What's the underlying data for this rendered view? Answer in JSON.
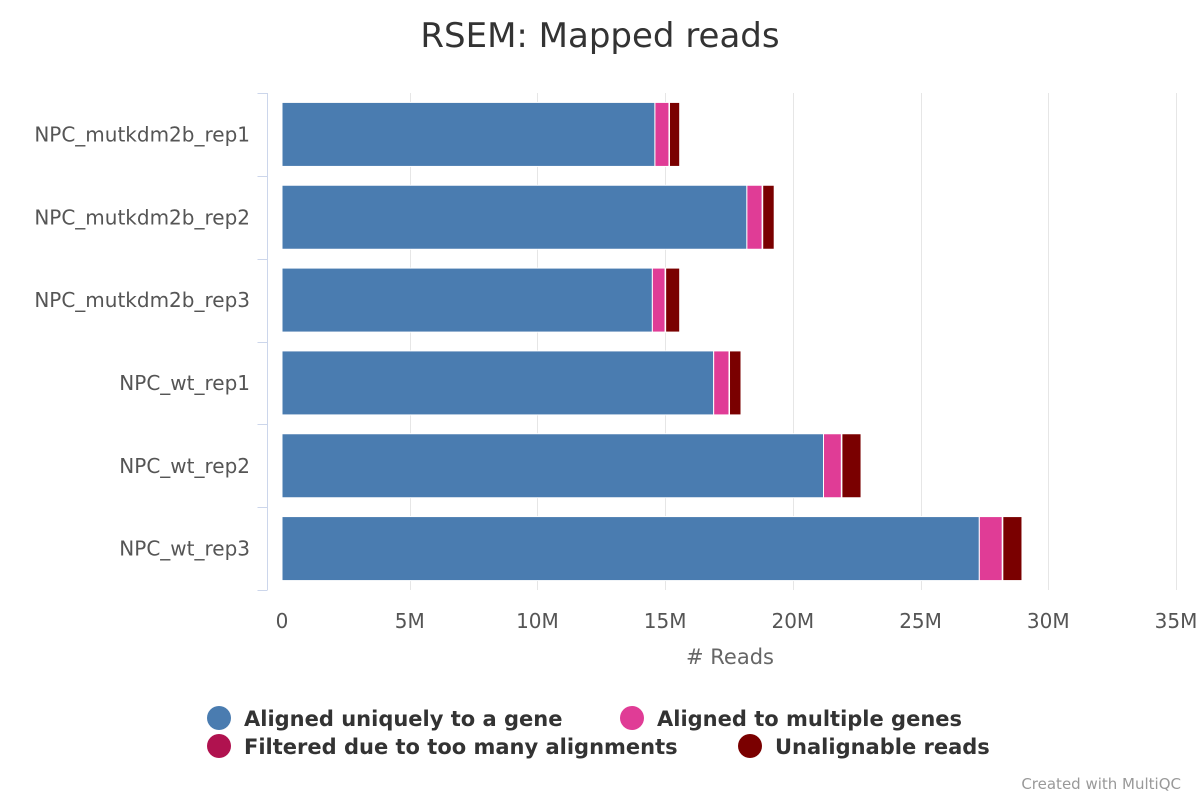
{
  "chart_data": {
    "type": "bar",
    "orientation": "horizontal",
    "stacked": true,
    "title": "RSEM: Mapped reads",
    "xlabel": "# Reads",
    "categories": [
      "NPC_mutkdm2b_rep1",
      "NPC_mutkdm2b_rep2",
      "NPC_mutkdm2b_rep3",
      "NPC_wt_rep1",
      "NPC_wt_rep2",
      "NPC_wt_rep3"
    ],
    "xlim": [
      0,
      35000000
    ],
    "x_ticks": [
      0,
      5000000,
      10000000,
      15000000,
      20000000,
      25000000,
      30000000,
      35000000
    ],
    "x_tick_labels": [
      "0",
      "5M",
      "10M",
      "15M",
      "20M",
      "25M",
      "30M",
      "35M"
    ],
    "series": [
      {
        "name": "Aligned uniquely to a gene",
        "color": "#4A7CB0",
        "values": [
          14600000,
          18200000,
          14500000,
          16900000,
          21200000,
          27300000
        ]
      },
      {
        "name": "Aligned to multiple genes",
        "color": "#E03C96",
        "values": [
          550000,
          600000,
          500000,
          600000,
          700000,
          900000
        ]
      },
      {
        "name": "Filtered due to too many alignments",
        "color": "#B0124F",
        "values": [
          20000,
          20000,
          20000,
          20000,
          20000,
          20000
        ]
      },
      {
        "name": "Unalignable reads",
        "color": "#7A0000",
        "values": [
          400000,
          450000,
          550000,
          450000,
          750000,
          750000
        ]
      }
    ],
    "legend_placement": "bottom",
    "grid": true,
    "credit": "Created with MultiQC"
  }
}
